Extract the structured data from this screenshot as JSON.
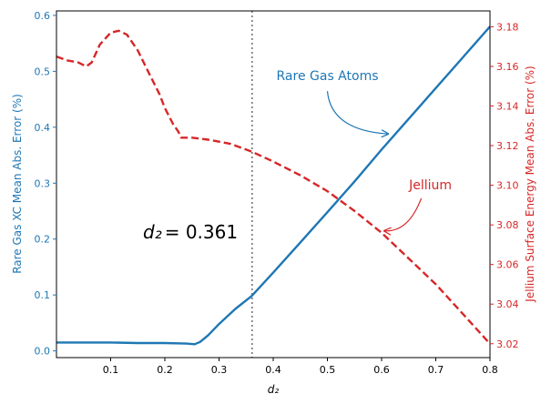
{
  "chart_data": {
    "type": "line",
    "title": "",
    "xlabel": "d₂",
    "xlim": [
      0.0,
      0.8
    ],
    "x_ticks": [
      "0.1",
      "0.2",
      "0.3",
      "0.4",
      "0.5",
      "0.6",
      "0.7",
      "0.8"
    ],
    "y_left": {
      "label": "Rare Gas XC Mean Abs. Error (%)",
      "color": "#1f77b4",
      "lim": [
        -0.012,
        0.608
      ],
      "ticks": [
        "0.0",
        "0.1",
        "0.2",
        "0.3",
        "0.4",
        "0.5",
        "0.6"
      ]
    },
    "y_right": {
      "label": "Jellium Surface Energy Mean Abs. Error (%)",
      "color": "#d62728",
      "lim": [
        3.013,
        3.188
      ],
      "ticks": [
        "3.02",
        "3.04",
        "3.06",
        "3.08",
        "3.10",
        "3.12",
        "3.14",
        "3.16",
        "3.18"
      ]
    },
    "series": [
      {
        "name": "Rare Gas Atoms",
        "axis": "left",
        "color": "#1f77b4",
        "style": "solid",
        "x": [
          0.0,
          0.05,
          0.1,
          0.15,
          0.2,
          0.24,
          0.255,
          0.265,
          0.28,
          0.3,
          0.33,
          0.36,
          0.4,
          0.45,
          0.5,
          0.55,
          0.6,
          0.65,
          0.7,
          0.75,
          0.8
        ],
        "y": [
          0.015,
          0.015,
          0.015,
          0.014,
          0.014,
          0.013,
          0.012,
          0.016,
          0.028,
          0.048,
          0.075,
          0.098,
          0.14,
          0.194,
          0.248,
          0.303,
          0.36,
          0.415,
          0.47,
          0.525,
          0.58
        ]
      },
      {
        "name": "Jellium",
        "axis": "right",
        "color": "#d62728",
        "style": "dashed",
        "x": [
          0.0,
          0.02,
          0.04,
          0.055,
          0.065,
          0.08,
          0.1,
          0.115,
          0.13,
          0.15,
          0.17,
          0.19,
          0.2,
          0.215,
          0.225,
          0.23,
          0.25,
          0.28,
          0.32,
          0.36,
          0.4,
          0.45,
          0.5,
          0.55,
          0.6,
          0.65,
          0.7,
          0.75,
          0.8
        ],
        "y": [
          3.165,
          3.163,
          3.162,
          3.16,
          3.162,
          3.171,
          3.177,
          3.178,
          3.176,
          3.168,
          3.157,
          3.146,
          3.139,
          3.131,
          3.127,
          3.124,
          3.124,
          3.123,
          3.121,
          3.117,
          3.112,
          3.105,
          3.097,
          3.087,
          3.076,
          3.063,
          3.05,
          3.035,
          3.02
        ]
      }
    ],
    "vline": {
      "x": 0.361,
      "color": "#808080",
      "style": "dotted",
      "label_var": "d₂",
      "label_eq": "= 0.361"
    },
    "annotations": [
      {
        "text": "Rare Gas Atoms",
        "color": "#1f77b4",
        "text_at": [
          0.5,
          0.484
        ],
        "arrow_to": [
          0.612,
          0.388
        ],
        "axis": "left"
      },
      {
        "text": "Jellium",
        "color": "#d62728",
        "text_at": [
          0.69,
          3.098
        ],
        "arrow_to": [
          0.605,
          3.077
        ],
        "axis": "right"
      }
    ],
    "grid": false,
    "legend": "none"
  }
}
